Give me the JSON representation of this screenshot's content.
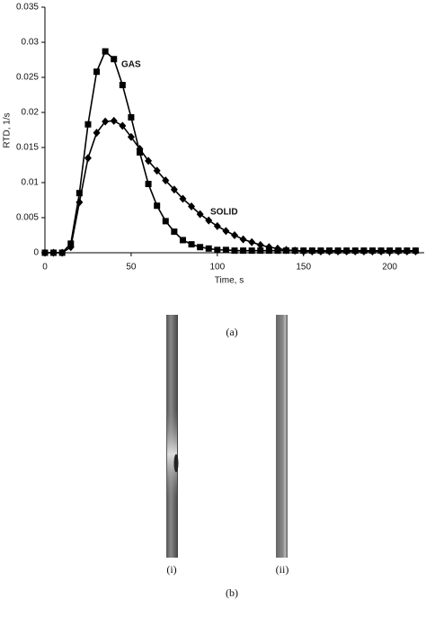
{
  "chart_data": {
    "type": "line",
    "xlabel": "Time, s",
    "ylabel": "RTD, 1/s",
    "annotations": [
      "GAS",
      "SOLID"
    ],
    "x": [
      0,
      5,
      10,
      15,
      20,
      25,
      30,
      35,
      40,
      45,
      50,
      55,
      60,
      65,
      70,
      75,
      80,
      85,
      90,
      95,
      100,
      105,
      110,
      115,
      120,
      125,
      130,
      135,
      140,
      145,
      150,
      155,
      160,
      165,
      170,
      175,
      180,
      185,
      190,
      195,
      200,
      205,
      210,
      215
    ],
    "series": [
      {
        "name": "GAS",
        "color": "#000000",
        "marker": "square",
        "values": [
          0,
          0,
          0,
          0.0013,
          0.0085,
          0.0183,
          0.0258,
          0.0287,
          0.0276,
          0.0239,
          0.0193,
          0.0143,
          0.0098,
          0.0067,
          0.0045,
          0.003,
          0.0018,
          0.0012,
          0.0008,
          0.0006,
          0.0004,
          0.0004,
          0.0003,
          0.0003,
          0.0003,
          0.0003,
          0.0003,
          0.0003,
          0.0003,
          0.0003,
          0.0003,
          0.0003,
          0.0003,
          0.0003,
          0.0003,
          0.0003,
          0.0003,
          0.0003,
          0.0003,
          0.0003,
          0.0003,
          0.0003,
          0.0003,
          0.0003
        ]
      },
      {
        "name": "SOLID",
        "color": "#000000",
        "marker": "diamond",
        "values": [
          0,
          0,
          0,
          0.0008,
          0.0072,
          0.0135,
          0.0171,
          0.0187,
          0.0188,
          0.0181,
          0.0165,
          0.0148,
          0.0131,
          0.0117,
          0.0103,
          0.009,
          0.0077,
          0.0066,
          0.0055,
          0.0046,
          0.0038,
          0.0031,
          0.0025,
          0.0019,
          0.0015,
          0.0011,
          0.0008,
          0.0006,
          0.0004,
          0.0003,
          0.0002,
          0.0002,
          0.0002,
          0.0002,
          0.0002,
          0.0002,
          0.0002,
          0.0002,
          0.0002,
          0.0002,
          0.0002,
          0.0002,
          0.0002,
          0.0002
        ]
      }
    ],
    "xlim": [
      0,
      220
    ],
    "xticks": [
      0,
      50,
      100,
      150,
      200
    ],
    "ylim": [
      0,
      0.035
    ],
    "yticks": [
      0,
      0.005,
      0.01,
      0.015,
      0.02,
      0.025,
      0.03,
      0.035
    ],
    "grid": false
  },
  "captions": {
    "a": "(a)",
    "b": "(b)",
    "i": "(i)",
    "ii": "(ii)"
  }
}
